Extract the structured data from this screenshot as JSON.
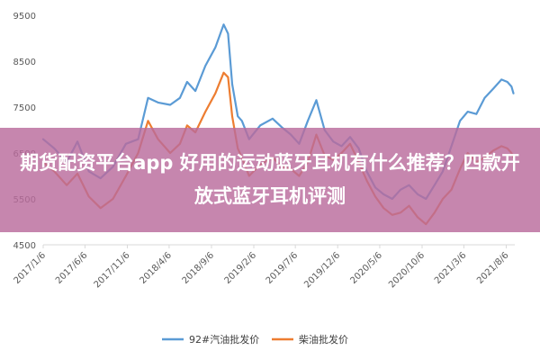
{
  "banner": {
    "title": "期货配资平台app 好用的运动蓝牙耳机有什么推荐？四款开放式蓝牙耳机评测"
  },
  "colors": {
    "series_gasoline": "#5b9bd5",
    "series_diesel": "#ed7d31",
    "overlay": "#ba6b9c"
  },
  "chart_data": {
    "type": "line",
    "ylim": [
      4500,
      9500
    ],
    "yticks": [
      4500,
      5500,
      6500,
      7500,
      8500,
      9500
    ],
    "xticks": [
      "2017/1/6",
      "2017/6/6",
      "2017/11/6",
      "2018/4/6",
      "2018/9/6",
      "2019/2/6",
      "2019/7/6",
      "2019/12/6",
      "2020/5/6",
      "2020/10/6",
      "2021/3/6",
      "2021/8/6"
    ],
    "x_start": "2017/1/6",
    "x_end": "2021/9/6",
    "legend_position": "bottom",
    "grid": false,
    "series": [
      {
        "name": "92#汽油批发价",
        "color": "#5b9bd5",
        "points": [
          [
            "2017/1/6",
            6800
          ],
          [
            "2017/2/15",
            6600
          ],
          [
            "2017/4/1",
            6300
          ],
          [
            "2017/5/10",
            6750
          ],
          [
            "2017/6/20",
            6100
          ],
          [
            "2017/8/1",
            5950
          ],
          [
            "2017/9/15",
            6200
          ],
          [
            "2017/11/1",
            6700
          ],
          [
            "2017/12/15",
            6800
          ],
          [
            "2018/1/20",
            7700
          ],
          [
            "2018/2/25",
            7600
          ],
          [
            "2018/4/10",
            7550
          ],
          [
            "2018/5/15",
            7700
          ],
          [
            "2018/6/10",
            8050
          ],
          [
            "2018/7/10",
            7850
          ],
          [
            "2018/8/15",
            8400
          ],
          [
            "2018/9/20",
            8800
          ],
          [
            "2018/10/20",
            9300
          ],
          [
            "2018/11/5",
            9100
          ],
          [
            "2018/11/20",
            8000
          ],
          [
            "2018/12/10",
            7300
          ],
          [
            "2018/12/25",
            7200
          ],
          [
            "2019/1/20",
            6800
          ],
          [
            "2019/3/1",
            7100
          ],
          [
            "2019/4/15",
            7250
          ],
          [
            "2019/5/20",
            7050
          ],
          [
            "2019/6/20",
            6900
          ],
          [
            "2019/7/20",
            6700
          ],
          [
            "2019/8/20",
            7200
          ],
          [
            "2019/9/20",
            7650
          ],
          [
            "2019/10/20",
            7000
          ],
          [
            "2019/11/20",
            6750
          ],
          [
            "2019/12/20",
            6650
          ],
          [
            "2020/1/20",
            6850
          ],
          [
            "2020/2/20",
            6600
          ],
          [
            "2020/3/20",
            6100
          ],
          [
            "2020/4/20",
            5750
          ],
          [
            "2020/5/20",
            5600
          ],
          [
            "2020/6/20",
            5500
          ],
          [
            "2020/7/20",
            5700
          ],
          [
            "2020/8/20",
            5800
          ],
          [
            "2020/9/20",
            5600
          ],
          [
            "2020/10/20",
            5500
          ],
          [
            "2020/11/20",
            5800
          ],
          [
            "2020/12/20",
            6100
          ],
          [
            "2021/1/20",
            6650
          ],
          [
            "2021/2/20",
            7200
          ],
          [
            "2021/3/20",
            7400
          ],
          [
            "2021/4/20",
            7350
          ],
          [
            "2021/5/20",
            7700
          ],
          [
            "2021/6/20",
            7900
          ],
          [
            "2021/7/20",
            8100
          ],
          [
            "2021/8/10",
            8050
          ],
          [
            "2021/8/25",
            7950
          ],
          [
            "2021/9/1",
            7800
          ]
        ]
      },
      {
        "name": "柴油批发价",
        "color": "#ed7d31",
        "points": [
          [
            "2017/1/6",
            6300
          ],
          [
            "2017/2/15",
            6100
          ],
          [
            "2017/4/1",
            5800
          ],
          [
            "2017/5/10",
            6050
          ],
          [
            "2017/6/20",
            5550
          ],
          [
            "2017/8/1",
            5300
          ],
          [
            "2017/9/15",
            5500
          ],
          [
            "2017/11/1",
            6000
          ],
          [
            "2017/12/15",
            6500
          ],
          [
            "2018/1/20",
            7200
          ],
          [
            "2018/2/25",
            6800
          ],
          [
            "2018/4/10",
            6500
          ],
          [
            "2018/5/15",
            6700
          ],
          [
            "2018/6/10",
            7100
          ],
          [
            "2018/7/10",
            6950
          ],
          [
            "2018/8/15",
            7400
          ],
          [
            "2018/9/20",
            7800
          ],
          [
            "2018/10/20",
            8250
          ],
          [
            "2018/11/5",
            8150
          ],
          [
            "2018/11/20",
            7300
          ],
          [
            "2018/12/10",
            6600
          ],
          [
            "2018/12/25",
            6400
          ],
          [
            "2019/1/20",
            6000
          ],
          [
            "2019/3/1",
            6250
          ],
          [
            "2019/4/15",
            6400
          ],
          [
            "2019/5/20",
            6200
          ],
          [
            "2019/6/20",
            6150
          ],
          [
            "2019/7/20",
            6000
          ],
          [
            "2019/8/20",
            6300
          ],
          [
            "2019/9/20",
            6900
          ],
          [
            "2019/10/20",
            6450
          ],
          [
            "2019/11/20",
            6350
          ],
          [
            "2019/12/20",
            6500
          ],
          [
            "2020/1/20",
            6700
          ],
          [
            "2020/2/20",
            6300
          ],
          [
            "2020/3/20",
            5900
          ],
          [
            "2020/4/20",
            5550
          ],
          [
            "2020/5/20",
            5300
          ],
          [
            "2020/6/20",
            5150
          ],
          [
            "2020/7/20",
            5200
          ],
          [
            "2020/8/20",
            5350
          ],
          [
            "2020/9/20",
            5100
          ],
          [
            "2020/10/20",
            4950
          ],
          [
            "2020/11/20",
            5200
          ],
          [
            "2020/12/20",
            5500
          ],
          [
            "2021/1/20",
            5700
          ],
          [
            "2021/2/20",
            6150
          ],
          [
            "2021/3/20",
            6500
          ],
          [
            "2021/4/20",
            6300
          ],
          [
            "2021/5/20",
            6400
          ],
          [
            "2021/6/20",
            6550
          ],
          [
            "2021/7/20",
            6650
          ],
          [
            "2021/8/10",
            6600
          ],
          [
            "2021/8/25",
            6500
          ],
          [
            "2021/9/1",
            6400
          ]
        ]
      }
    ]
  }
}
